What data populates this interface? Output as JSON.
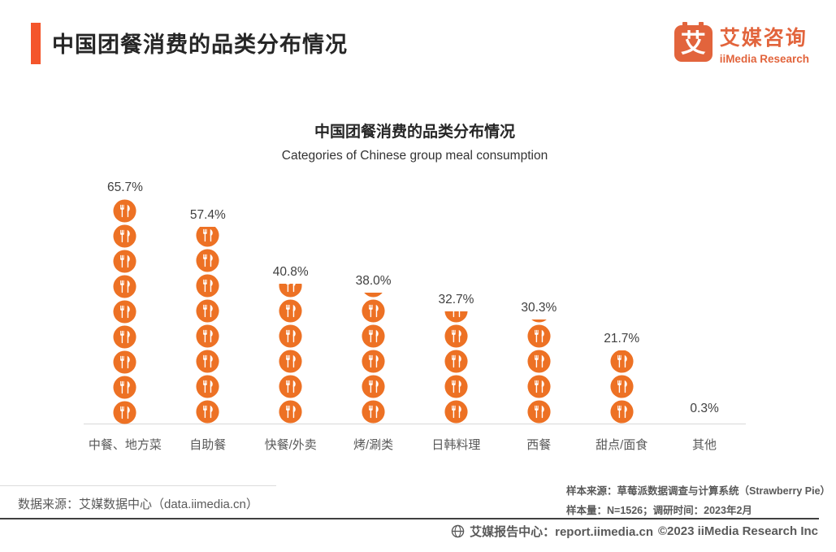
{
  "header": {
    "title": "中国团餐消费的品类分布情况"
  },
  "logo": {
    "icon_char": "艾",
    "name_zh": "艾媒咨询",
    "name_en": "iiMedia Research"
  },
  "chart_data": {
    "type": "bar",
    "variant": "pictogram",
    "icon": "fork-knife-circle-icon",
    "title": "中国团餐消费的品类分布情况",
    "subtitle": "Categories of Chinese group meal consumption",
    "categories": [
      "中餐、地方菜",
      "自助餐",
      "快餐/外卖",
      "烤/涮类",
      "日韩料理",
      "西餐",
      "甜点/面食",
      "其他"
    ],
    "values": [
      65.7,
      57.4,
      40.8,
      38.0,
      32.7,
      30.3,
      21.7,
      0.3
    ],
    "value_labels": [
      "65.7%",
      "57.4%",
      "40.8%",
      "38.0%",
      "32.7%",
      "30.3%",
      "21.7%",
      "0.3%"
    ],
    "unit": "%",
    "icon_unit_percent": 7.3,
    "ylim": [
      0,
      65.7
    ],
    "grid": false,
    "legend": false,
    "colors": {
      "icon": "#ED7124",
      "value_label": "#404040",
      "category_label": "#595959",
      "axis_line": "#D9D9D9"
    }
  },
  "footer": {
    "data_source": "数据来源：艾媒数据中心（data.iimedia.cn）",
    "sample_source": "样本来源：草莓派数据调查与计算系统（Strawberry Pie）",
    "sample_info": "样本量：N=1526；调研时间：2023年2月",
    "report_center": "艾媒报告中心：report.iimedia.cn",
    "copyright": "©2023  iiMedia Research Inc"
  },
  "colors": {
    "accent": "#F4552B",
    "logo": "#E2643C",
    "title_text": "#262626"
  }
}
